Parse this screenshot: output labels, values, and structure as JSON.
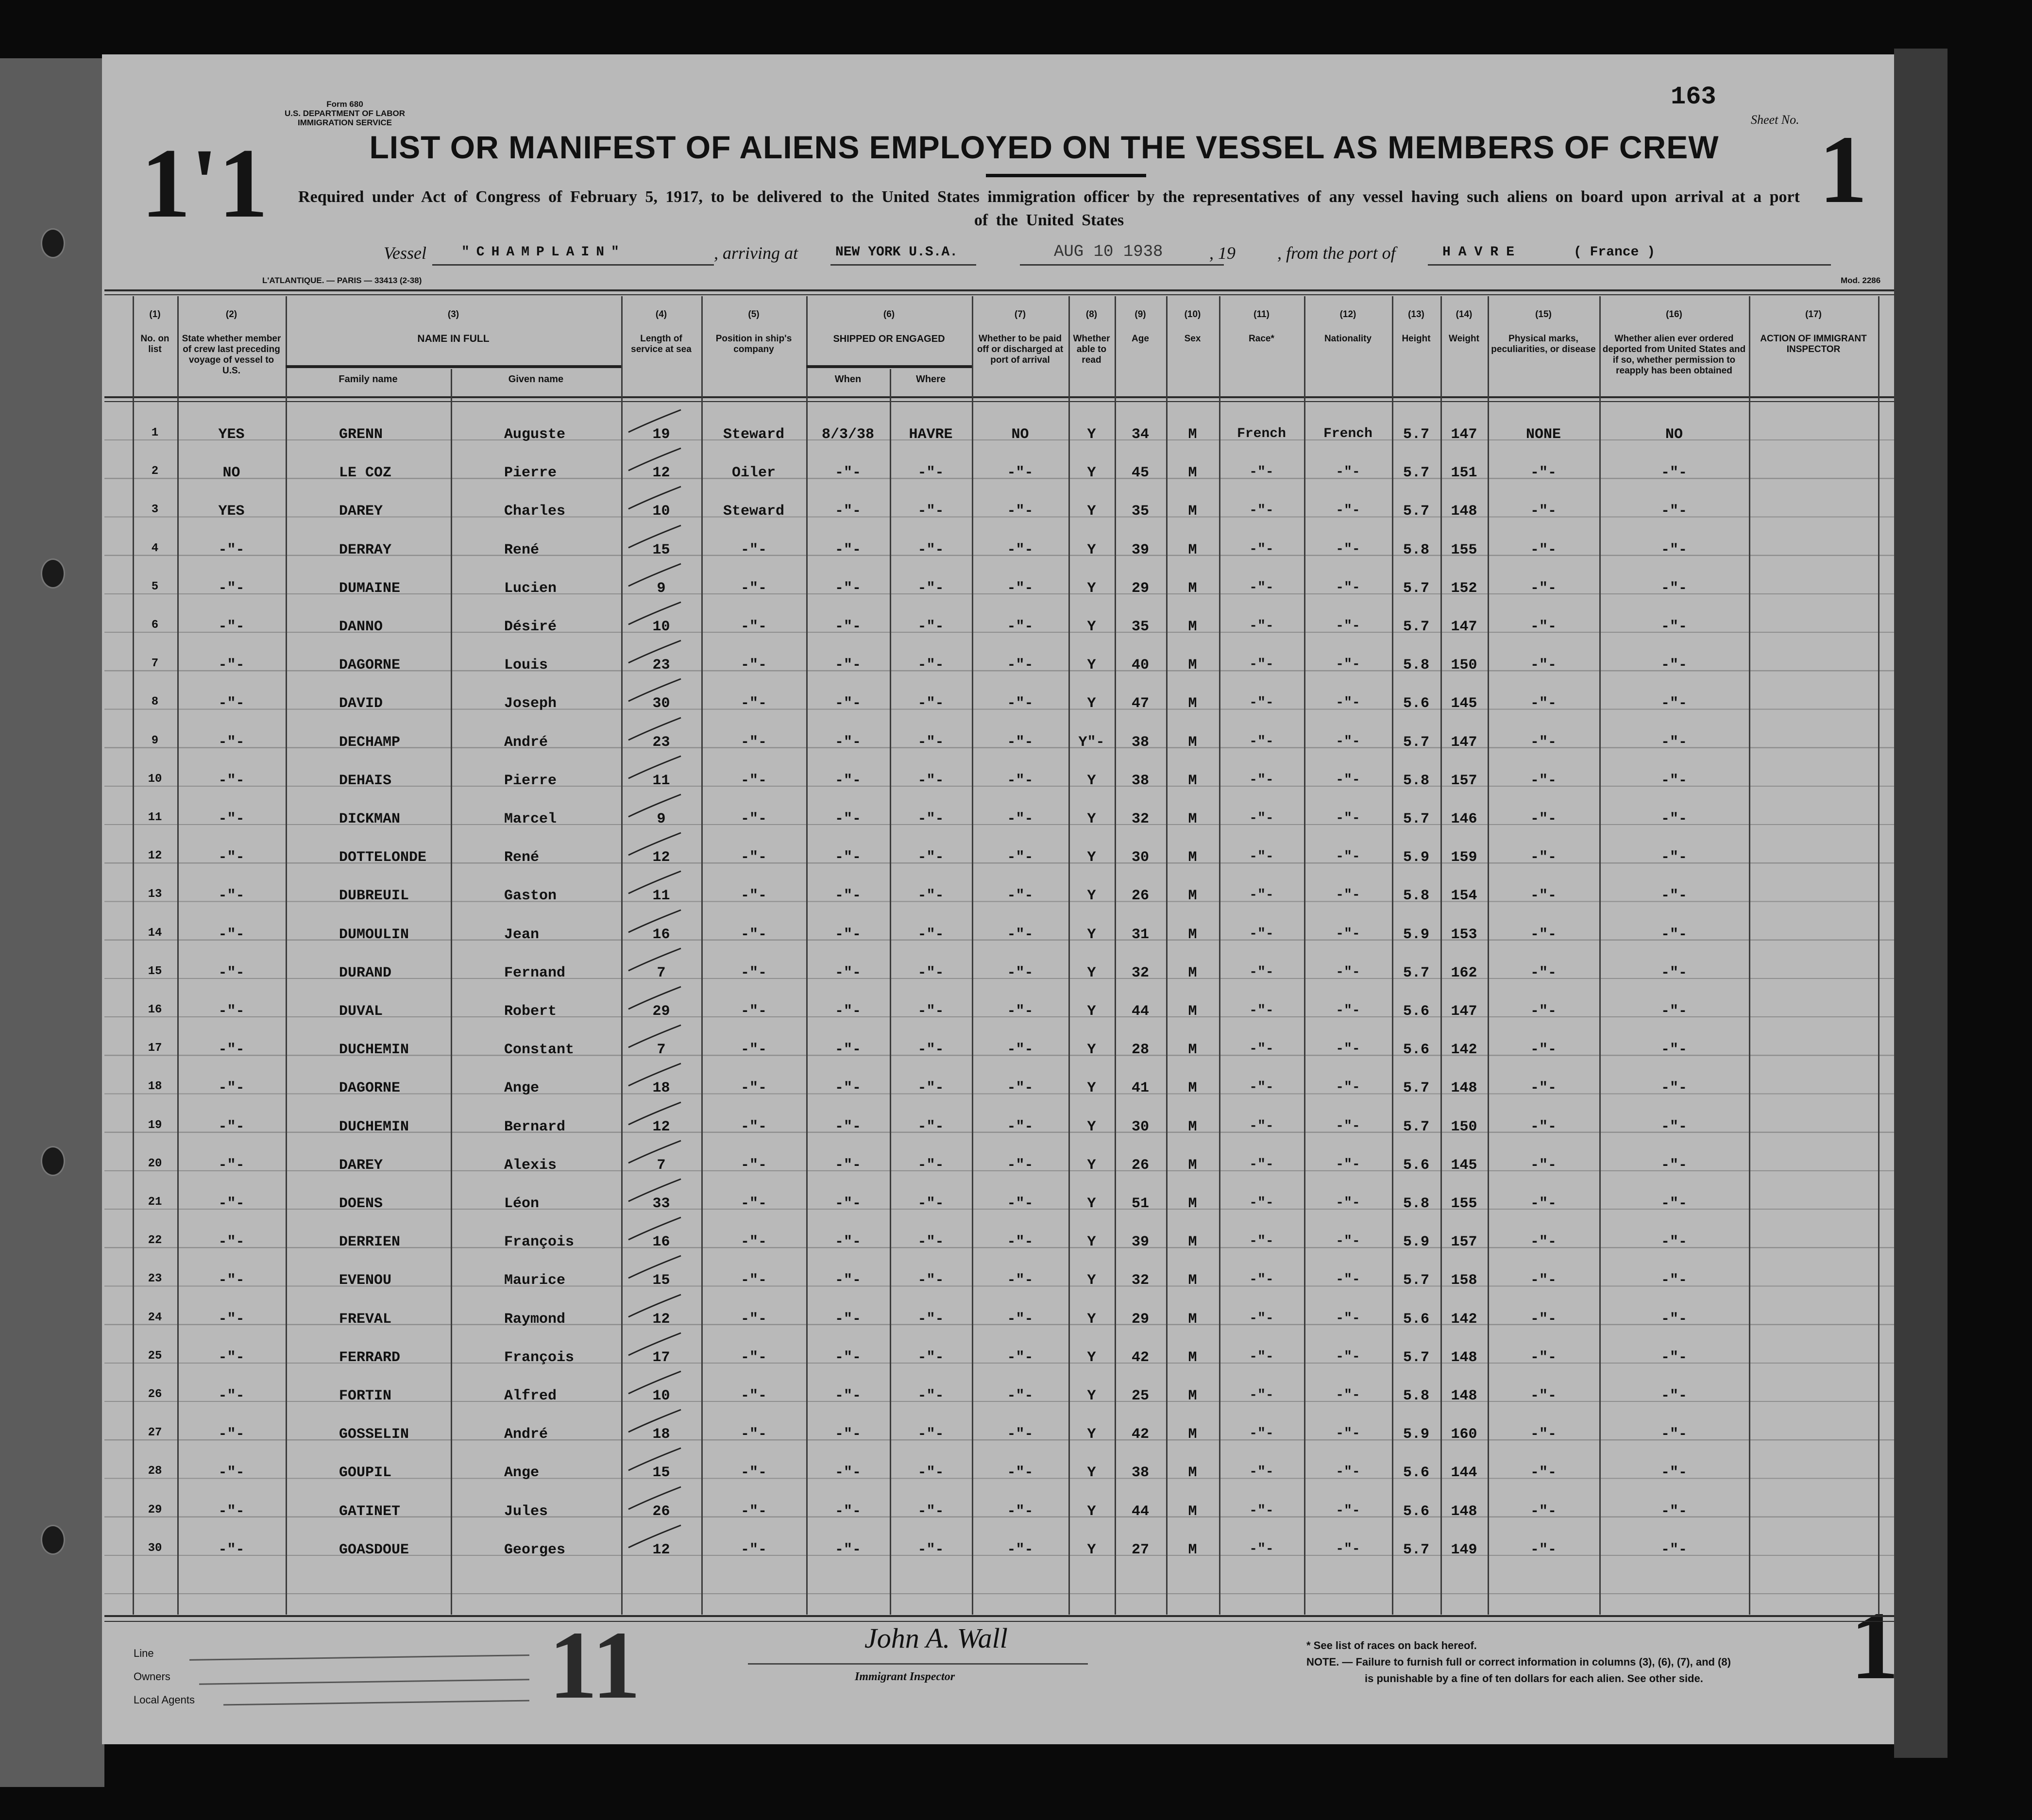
{
  "header": {
    "page_number": "163",
    "sheet_label": "Sheet No.",
    "form_number": "Form 680",
    "department": "U.S. DEPARTMENT OF LABOR",
    "service": "IMMIGRATION SERVICE",
    "title": "LIST OR MANIFEST OF ALIENS EMPLOYED ON THE VESSEL AS MEMBERS OF CREW",
    "subtitle": "Required under Act of Congress of February 5, 1917, to be delivered to the United States immigration officer by the representatives of any vessel having such aliens on board upon arrival at a port of the United States",
    "printer_line": "L'ATLANTIQUE. — PARIS — 33413 (2-38)",
    "mod_label": "Mod. 2286"
  },
  "vessel": {
    "vessel_label": "Vessel",
    "vessel_name": "\"CHAMPLAIN\"",
    "arriving_label": ", arriving at",
    "arriving_port": "NEW YORK U.S.A.",
    "date_stamp": "AUG 10 1938",
    "year_label": ", 19",
    "from_label": ", from the port of",
    "from_port": "HAVRE",
    "from_country": "( France )"
  },
  "sheet_marks": {
    "top_left": "1'1",
    "top_right": "1",
    "bottom_left": "11",
    "bottom_right": "1"
  },
  "table": {
    "group_headers": {
      "name": "NAME IN FULL",
      "shipped": "SHIPPED OR ENGAGED"
    },
    "sub_headers": {
      "family": "Family name",
      "given": "Given name",
      "when": "When",
      "where": "Where"
    },
    "columns": [
      {
        "num": "(1)",
        "label": "No. on list"
      },
      {
        "num": "(2)",
        "label": "State whether member of crew last preceding voyage of vessel to U.S."
      },
      {
        "num": "(3)",
        "label": ""
      },
      {
        "num": "(4)",
        "label": "Length of service at sea"
      },
      {
        "num": "(5)",
        "label": "Position in ship's company"
      },
      {
        "num": "(6)",
        "label": ""
      },
      {
        "num": "(7)",
        "label": "Whether to be paid off or discharged at port of arrival"
      },
      {
        "num": "(8)",
        "label": "Whether able to read"
      },
      {
        "num": "(9)",
        "label": "Age"
      },
      {
        "num": "(10)",
        "label": "Sex"
      },
      {
        "num": "(11)",
        "label": "Race*"
      },
      {
        "num": "(12)",
        "label": "Nationality"
      },
      {
        "num": "(13)",
        "label": "Height"
      },
      {
        "num": "(14)",
        "label": "Weight"
      },
      {
        "num": "(15)",
        "label": "Physical marks, peculiarities, or disease"
      },
      {
        "num": "(16)",
        "label": "Whether alien ever ordered deported from United States and if so, whether permission to reapply has been obtained"
      },
      {
        "num": "(17)",
        "label": "ACTION OF IMMIGRANT INSPECTOR"
      }
    ],
    "rows": [
      {
        "no": "1",
        "crew": "YES",
        "family": "GRENN",
        "given": "Auguste",
        "service": "19",
        "position": "Steward",
        "when": "8/3/38",
        "where": "HAVRE",
        "paid": "NO",
        "read": "Y",
        "age": "34",
        "sex": "M",
        "race": "French",
        "nationality": "French",
        "height": "5.7",
        "weight": "147",
        "marks": "NONE",
        "deported": "NO"
      },
      {
        "no": "2",
        "crew": "NO",
        "family": "LE COZ",
        "given": "Pierre",
        "service": "12",
        "position": "Oiler",
        "when": "-\"-",
        "where": "-\"-",
        "paid": "-\"-",
        "read": "Y",
        "age": "45",
        "sex": "M",
        "race": "-\"-",
        "nationality": "-\"-",
        "height": "5.7",
        "weight": "151",
        "marks": "-\"-",
        "deported": "-\"-"
      },
      {
        "no": "3",
        "crew": "YES",
        "family": "DAREY",
        "given": "Charles",
        "service": "10",
        "position": "Steward",
        "when": "-\"-",
        "where": "-\"-",
        "paid": "-\"-",
        "read": "Y",
        "age": "35",
        "sex": "M",
        "race": "-\"-",
        "nationality": "-\"-",
        "height": "5.7",
        "weight": "148",
        "marks": "-\"-",
        "deported": "-\"-"
      },
      {
        "no": "4",
        "crew": "-\"-",
        "family": "DERRAY",
        "given": "René",
        "service": "15",
        "position": "-\"-",
        "when": "-\"-",
        "where": "-\"-",
        "paid": "-\"-",
        "read": "Y",
        "age": "39",
        "sex": "M",
        "race": "-\"-",
        "nationality": "-\"-",
        "height": "5.8",
        "weight": "155",
        "marks": "-\"-",
        "deported": "-\"-"
      },
      {
        "no": "5",
        "crew": "-\"-",
        "family": "DUMAINE",
        "given": "Lucien",
        "service": "9",
        "position": "-\"-",
        "when": "-\"-",
        "where": "-\"-",
        "paid": "-\"-",
        "read": "Y",
        "age": "29",
        "sex": "M",
        "race": "-\"-",
        "nationality": "-\"-",
        "height": "5.7",
        "weight": "152",
        "marks": "-\"-",
        "deported": "-\"-"
      },
      {
        "no": "6",
        "crew": "-\"-",
        "family": "DANNO",
        "given": "Désiré",
        "service": "10",
        "position": "-\"-",
        "when": "-\"-",
        "where": "-\"-",
        "paid": "-\"-",
        "read": "Y",
        "age": "35",
        "sex": "M",
        "race": "-\"-",
        "nationality": "-\"-",
        "height": "5.7",
        "weight": "147",
        "marks": "-\"-",
        "deported": "-\"-"
      },
      {
        "no": "7",
        "crew": "-\"-",
        "family": "DAGORNE",
        "given": "Louis",
        "service": "23",
        "position": "-\"-",
        "when": "-\"-",
        "where": "-\"-",
        "paid": "-\"-",
        "read": "Y",
        "age": "40",
        "sex": "M",
        "race": "-\"-",
        "nationality": "-\"-",
        "height": "5.8",
        "weight": "150",
        "marks": "-\"-",
        "deported": "-\"-"
      },
      {
        "no": "8",
        "crew": "-\"-",
        "family": "DAVID",
        "given": "Joseph",
        "service": "30",
        "position": "-\"-",
        "when": "-\"-",
        "where": "-\"-",
        "paid": "-\"-",
        "read": "Y",
        "age": "47",
        "sex": "M",
        "race": "-\"-",
        "nationality": "-\"-",
        "height": "5.6",
        "weight": "145",
        "marks": "-\"-",
        "deported": "-\"-"
      },
      {
        "no": "9",
        "crew": "-\"-",
        "family": "DECHAMP",
        "given": "André",
        "service": "23",
        "position": "-\"-",
        "when": "-\"-",
        "where": "-\"-",
        "paid": "-\"-",
        "read": "Y\"-",
        "age": "38",
        "sex": "M",
        "race": "-\"-",
        "nationality": "-\"-",
        "height": "5.7",
        "weight": "147",
        "marks": "-\"-",
        "deported": "-\"-"
      },
      {
        "no": "10",
        "crew": "-\"-",
        "family": "DEHAIS",
        "given": "Pierre",
        "service": "11",
        "position": "-\"-",
        "when": "-\"-",
        "where": "-\"-",
        "paid": "-\"-",
        "read": "Y",
        "age": "38",
        "sex": "M",
        "race": "-\"-",
        "nationality": "-\"-",
        "height": "5.8",
        "weight": "157",
        "marks": "-\"-",
        "deported": "-\"-"
      },
      {
        "no": "11",
        "crew": "-\"-",
        "family": "DICKMAN",
        "given": "Marcel",
        "service": "9",
        "position": "-\"-",
        "when": "-\"-",
        "where": "-\"-",
        "paid": "-\"-",
        "read": "Y",
        "age": "32",
        "sex": "M",
        "race": "-\"-",
        "nationality": "-\"-",
        "height": "5.7",
        "weight": "146",
        "marks": "-\"-",
        "deported": "-\"-"
      },
      {
        "no": "12",
        "crew": "-\"-",
        "family": "DOTTELONDE",
        "given": "René",
        "service": "12",
        "position": "-\"-",
        "when": "-\"-",
        "where": "-\"-",
        "paid": "-\"-",
        "read": "Y",
        "age": "30",
        "sex": "M",
        "race": "-\"-",
        "nationality": "-\"-",
        "height": "5.9",
        "weight": "159",
        "marks": "-\"-",
        "deported": "-\"-"
      },
      {
        "no": "13",
        "crew": "-\"-",
        "family": "DUBREUIL",
        "given": "Gaston",
        "service": "11",
        "position": "-\"-",
        "when": "-\"-",
        "where": "-\"-",
        "paid": "-\"-",
        "read": "Y",
        "age": "26",
        "sex": "M",
        "race": "-\"-",
        "nationality": "-\"-",
        "height": "5.8",
        "weight": "154",
        "marks": "-\"-",
        "deported": "-\"-"
      },
      {
        "no": "14",
        "crew": "-\"-",
        "family": "DUMOULIN",
        "given": "Jean",
        "service": "16",
        "position": "-\"-",
        "when": "-\"-",
        "where": "-\"-",
        "paid": "-\"-",
        "read": "Y",
        "age": "31",
        "sex": "M",
        "race": "-\"-",
        "nationality": "-\"-",
        "height": "5.9",
        "weight": "153",
        "marks": "-\"-",
        "deported": "-\"-"
      },
      {
        "no": "15",
        "crew": "-\"-",
        "family": "DURAND",
        "given": "Fernand",
        "service": "7",
        "position": "-\"-",
        "when": "-\"-",
        "where": "-\"-",
        "paid": "-\"-",
        "read": "Y",
        "age": "32",
        "sex": "M",
        "race": "-\"-",
        "nationality": "-\"-",
        "height": "5.7",
        "weight": "162",
        "marks": "-\"-",
        "deported": "-\"-"
      },
      {
        "no": "16",
        "crew": "-\"-",
        "family": "DUVAL",
        "given": "Robert",
        "service": "29",
        "position": "-\"-",
        "when": "-\"-",
        "where": "-\"-",
        "paid": "-\"-",
        "read": "Y",
        "age": "44",
        "sex": "M",
        "race": "-\"-",
        "nationality": "-\"-",
        "height": "5.6",
        "weight": "147",
        "marks": "-\"-",
        "deported": "-\"-"
      },
      {
        "no": "17",
        "crew": "-\"-",
        "family": "DUCHEMIN",
        "given": "Constant",
        "service": "7",
        "position": "-\"-",
        "when": "-\"-",
        "where": "-\"-",
        "paid": "-\"-",
        "read": "Y",
        "age": "28",
        "sex": "M",
        "race": "-\"-",
        "nationality": "-\"-",
        "height": "5.6",
        "weight": "142",
        "marks": "-\"-",
        "deported": "-\"-"
      },
      {
        "no": "18",
        "crew": "-\"-",
        "family": "DAGORNE",
        "given": "Ange",
        "service": "18",
        "position": "-\"-",
        "when": "-\"-",
        "where": "-\"-",
        "paid": "-\"-",
        "read": "Y",
        "age": "41",
        "sex": "M",
        "race": "-\"-",
        "nationality": "-\"-",
        "height": "5.7",
        "weight": "148",
        "marks": "-\"-",
        "deported": "-\"-"
      },
      {
        "no": "19",
        "crew": "-\"-",
        "family": "DUCHEMIN",
        "given": "Bernard",
        "service": "12",
        "position": "-\"-",
        "when": "-\"-",
        "where": "-\"-",
        "paid": "-\"-",
        "read": "Y",
        "age": "30",
        "sex": "M",
        "race": "-\"-",
        "nationality": "-\"-",
        "height": "5.7",
        "weight": "150",
        "marks": "-\"-",
        "deported": "-\"-"
      },
      {
        "no": "20",
        "crew": "-\"-",
        "family": "DAREY",
        "given": "Alexis",
        "service": "7",
        "position": "-\"-",
        "when": "-\"-",
        "where": "-\"-",
        "paid": "-\"-",
        "read": "Y",
        "age": "26",
        "sex": "M",
        "race": "-\"-",
        "nationality": "-\"-",
        "height": "5.6",
        "weight": "145",
        "marks": "-\"-",
        "deported": "-\"-"
      },
      {
        "no": "21",
        "crew": "-\"-",
        "family": "DOENS",
        "given": "Léon",
        "service": "33",
        "position": "-\"-",
        "when": "-\"-",
        "where": "-\"-",
        "paid": "-\"-",
        "read": "Y",
        "age": "51",
        "sex": "M",
        "race": "-\"-",
        "nationality": "-\"-",
        "height": "5.8",
        "weight": "155",
        "marks": "-\"-",
        "deported": "-\"-"
      },
      {
        "no": "22",
        "crew": "-\"-",
        "family": "DERRIEN",
        "given": "François",
        "service": "16",
        "position": "-\"-",
        "when": "-\"-",
        "where": "-\"-",
        "paid": "-\"-",
        "read": "Y",
        "age": "39",
        "sex": "M",
        "race": "-\"-",
        "nationality": "-\"-",
        "height": "5.9",
        "weight": "157",
        "marks": "-\"-",
        "deported": "-\"-"
      },
      {
        "no": "23",
        "crew": "-\"-",
        "family": "EVENOU",
        "given": "Maurice",
        "service": "15",
        "position": "-\"-",
        "when": "-\"-",
        "where": "-\"-",
        "paid": "-\"-",
        "read": "Y",
        "age": "32",
        "sex": "M",
        "race": "-\"-",
        "nationality": "-\"-",
        "height": "5.7",
        "weight": "158",
        "marks": "-\"-",
        "deported": "-\"-"
      },
      {
        "no": "24",
        "crew": "-\"-",
        "family": "FREVAL",
        "given": "Raymond",
        "service": "12",
        "position": "-\"-",
        "when": "-\"-",
        "where": "-\"-",
        "paid": "-\"-",
        "read": "Y",
        "age": "29",
        "sex": "M",
        "race": "-\"-",
        "nationality": "-\"-",
        "height": "5.6",
        "weight": "142",
        "marks": "-\"-",
        "deported": "-\"-"
      },
      {
        "no": "25",
        "crew": "-\"-",
        "family": "FERRARD",
        "given": "François",
        "service": "17",
        "position": "-\"-",
        "when": "-\"-",
        "where": "-\"-",
        "paid": "-\"-",
        "read": "Y",
        "age": "42",
        "sex": "M",
        "race": "-\"-",
        "nationality": "-\"-",
        "height": "5.7",
        "weight": "148",
        "marks": "-\"-",
        "deported": "-\"-"
      },
      {
        "no": "26",
        "crew": "-\"-",
        "family": "FORTIN",
        "given": "Alfred",
        "service": "10",
        "position": "-\"-",
        "when": "-\"-",
        "where": "-\"-",
        "paid": "-\"-",
        "read": "Y",
        "age": "25",
        "sex": "M",
        "race": "-\"-",
        "nationality": "-\"-",
        "height": "5.8",
        "weight": "148",
        "marks": "-\"-",
        "deported": "-\"-"
      },
      {
        "no": "27",
        "crew": "-\"-",
        "family": "GOSSELIN",
        "given": "André",
        "service": "18",
        "position": "-\"-",
        "when": "-\"-",
        "where": "-\"-",
        "paid": "-\"-",
        "read": "Y",
        "age": "42",
        "sex": "M",
        "race": "-\"-",
        "nationality": "-\"-",
        "height": "5.9",
        "weight": "160",
        "marks": "-\"-",
        "deported": "-\"-"
      },
      {
        "no": "28",
        "crew": "-\"-",
        "family": "GOUPIL",
        "given": "Ange",
        "service": "15",
        "position": "-\"-",
        "when": "-\"-",
        "where": "-\"-",
        "paid": "-\"-",
        "read": "Y",
        "age": "38",
        "sex": "M",
        "race": "-\"-",
        "nationality": "-\"-",
        "height": "5.6",
        "weight": "144",
        "marks": "-\"-",
        "deported": "-\"-"
      },
      {
        "no": "29",
        "crew": "-\"-",
        "family": "GATINET",
        "given": "Jules",
        "service": "26",
        "position": "-\"-",
        "when": "-\"-",
        "where": "-\"-",
        "paid": "-\"-",
        "read": "Y",
        "age": "44",
        "sex": "M",
        "race": "-\"-",
        "nationality": "-\"-",
        "height": "5.6",
        "weight": "148",
        "marks": "-\"-",
        "deported": "-\"-"
      },
      {
        "no": "30",
        "crew": "-\"-",
        "family": "GOASDOUE",
        "given": "Georges",
        "service": "12",
        "position": "-\"-",
        "when": "-\"-",
        "where": "-\"-",
        "paid": "-\"-",
        "read": "Y",
        "age": "27",
        "sex": "M",
        "race": "-\"-",
        "nationality": "-\"-",
        "height": "5.7",
        "weight": "149",
        "marks": "-\"-",
        "deported": "-\"-"
      }
    ]
  },
  "footer": {
    "line_label": "Line",
    "owners_label": "Owners",
    "local_agents_label": "Local Agents",
    "signature": "John A. Wall",
    "inspector_label": "Immigrant Inspector",
    "race_note": "* See list of races on back hereof.",
    "note_1": "NOTE. — Failure to furnish full or correct information in columns (3), (6), (7), and (8)",
    "note_2": "is punishable by a fine of ten dollars for each alien. See other side."
  }
}
